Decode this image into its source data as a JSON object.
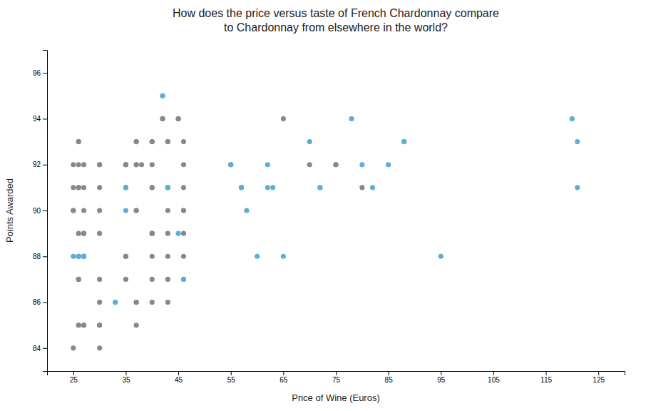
{
  "chart_data": {
    "type": "scatter",
    "title": "How does the price versus taste of French Chardonnay compare\nto Chardonnay from elsewhere in the world?",
    "xlabel": "Price of Wine (Euros)",
    "ylabel": "Points Awarded",
    "xlim": [
      20,
      130
    ],
    "ylim": [
      83,
      97
    ],
    "xticks": [
      25,
      35,
      45,
      55,
      65,
      75,
      85,
      95,
      105,
      115,
      125
    ],
    "yticks": [
      84,
      86,
      88,
      90,
      92,
      94,
      96
    ],
    "grid": false,
    "series": [
      {
        "color": "#888888",
        "marker": "circle",
        "x": [
          25,
          25,
          25,
          25,
          25,
          26,
          26,
          26,
          26,
          26,
          26,
          26,
          26,
          26,
          26,
          26,
          27,
          27,
          27,
          27,
          27,
          27,
          27,
          27,
          27,
          30,
          30,
          30,
          30,
          30,
          30,
          30,
          30,
          30,
          30,
          35,
          35,
          35,
          35,
          35,
          35,
          35,
          37,
          37,
          37,
          37,
          37,
          37,
          37,
          37,
          37,
          38,
          40,
          40,
          40,
          40,
          40,
          40,
          40,
          40,
          40,
          40,
          40,
          42,
          42,
          43,
          43,
          43,
          43,
          43,
          43,
          43,
          43,
          43,
          45,
          45,
          46,
          46,
          46,
          46,
          46,
          46,
          46,
          46,
          55,
          55,
          57,
          65,
          70,
          75,
          75,
          80,
          88
        ],
        "values": [
          84,
          92,
          91,
          90,
          90,
          93,
          93,
          92,
          91,
          91,
          89,
          88,
          87,
          87,
          85,
          85,
          92,
          91,
          90,
          89,
          89,
          88,
          88,
          85,
          85,
          84,
          92,
          92,
          91,
          90,
          89,
          87,
          86,
          85,
          85,
          92,
          92,
          92,
          91,
          88,
          88,
          87,
          93,
          93,
          92,
          92,
          90,
          90,
          86,
          86,
          85,
          92,
          93,
          93,
          92,
          91,
          91,
          89,
          89,
          89,
          88,
          87,
          86,
          94,
          94,
          93,
          93,
          91,
          91,
          90,
          89,
          88,
          87,
          86,
          94,
          94,
          93,
          92,
          91,
          90,
          90,
          89,
          88,
          87,
          92,
          92,
          91,
          94,
          92,
          92,
          92,
          91,
          93
        ]
      },
      {
        "color": "#5BAFD6",
        "marker": "circle",
        "x": [
          25,
          26,
          26,
          27,
          27,
          33,
          33,
          35,
          35,
          35,
          42,
          42,
          43,
          43,
          45,
          46,
          55,
          57,
          57,
          58,
          60,
          62,
          62,
          63,
          65,
          70,
          72,
          72,
          78,
          80,
          82,
          85,
          88,
          95,
          120,
          121,
          121
        ],
        "values": [
          88,
          88,
          88,
          88,
          88,
          86,
          86,
          90,
          91,
          91,
          95,
          95,
          91,
          91,
          89,
          87,
          92,
          91,
          91,
          90,
          88,
          92,
          91,
          91,
          88,
          93,
          91,
          91,
          94,
          92,
          91,
          92,
          93,
          88,
          94,
          93,
          91
        ]
      }
    ]
  }
}
